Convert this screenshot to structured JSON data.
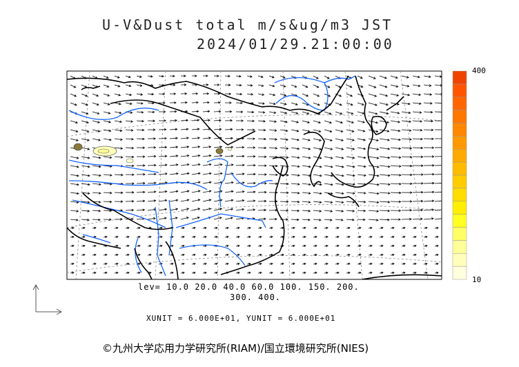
{
  "title": {
    "line1": "U-V&Dust total m/s&ug/m3 JST",
    "line2": "2024/01/29.21:00:00"
  },
  "colorbar": {
    "max_label": "400",
    "min_label": "10",
    "colors": [
      "#ffffdd",
      "#ffffbb",
      "#ffff99",
      "#ffff66",
      "#ffff22",
      "#ffee00",
      "#ffdd00",
      "#ffcc00",
      "#ffbb00",
      "#ffaa00",
      "#ff9900",
      "#ff8800",
      "#ff7700",
      "#ff6600",
      "#ff5500",
      "#ee4400"
    ]
  },
  "levels": {
    "line1": "lev= 10.0 20.0 40.0 60.0 100. 150. 200.",
    "line2": "300. 400."
  },
  "units": "XUNIT = 6.000E+01, YUNIT = 6.000E+01",
  "copyright": "©九州大学応用力学研究所(RIAM)/国立環境研究所(NIES)",
  "colors": {
    "coastline": "#000000",
    "rivers": "#1565ff",
    "grid": "#888888"
  }
}
